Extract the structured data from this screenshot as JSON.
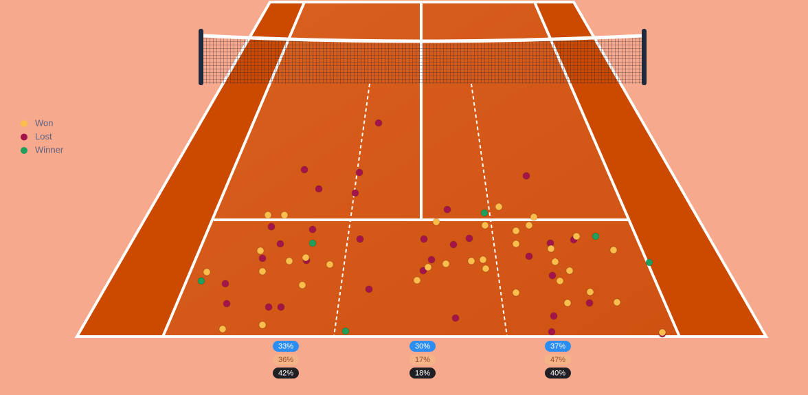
{
  "legend": {
    "items": [
      "Won",
      "Lost",
      "Winner"
    ]
  },
  "zones": [
    [
      "33%",
      "36%",
      "42%"
    ],
    [
      "30%",
      "17%",
      "18%"
    ],
    [
      "37%",
      "47%",
      "40%"
    ]
  ]
}
